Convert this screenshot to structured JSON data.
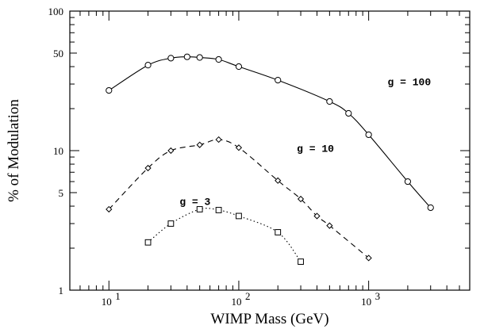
{
  "chart_data": {
    "type": "line",
    "xlabel": "WIMP Mass (GeV)",
    "ylabel": "% of Modulation",
    "x_scale": "log",
    "y_scale": "log",
    "xlim": [
      5,
      6000
    ],
    "ylim": [
      1,
      100
    ],
    "x_ticks": [
      {
        "value": 10,
        "label": "10",
        "exp": "1"
      },
      {
        "value": 100,
        "label": "10",
        "exp": "2"
      },
      {
        "value": 1000,
        "label": "10",
        "exp": "3"
      }
    ],
    "y_ticks": [
      {
        "value": 1,
        "label": "1"
      },
      {
        "value": 5,
        "label": "5"
      },
      {
        "value": 10,
        "label": "10"
      },
      {
        "value": 50,
        "label": "50"
      },
      {
        "value": 100,
        "label": "100"
      }
    ],
    "grid": false,
    "series": [
      {
        "name": "g = 100",
        "line_style": "solid",
        "marker": "circle",
        "x": [
          10,
          20,
          30,
          40,
          50,
          70,
          100,
          200,
          500,
          700,
          1000,
          2000,
          3000
        ],
        "y": [
          27,
          41,
          46,
          47,
          46.5,
          45,
          40,
          32,
          22.5,
          18.5,
          13,
          6,
          3.9
        ]
      },
      {
        "name": "g = 10",
        "line_style": "dashed",
        "marker": "diamond",
        "x": [
          10,
          20,
          30,
          50,
          70,
          100,
          200,
          300,
          400,
          500,
          1000
        ],
        "y": [
          3.8,
          7.5,
          10,
          11,
          12,
          10.5,
          6.1,
          4.5,
          3.4,
          2.9,
          1.7
        ]
      },
      {
        "name": "g = 3",
        "line_style": "dotted",
        "marker": "square",
        "x": [
          20,
          30,
          50,
          70,
          100,
          200,
          300
        ],
        "y": [
          2.2,
          3.0,
          3.8,
          3.75,
          3.4,
          2.6,
          1.6
        ]
      }
    ],
    "annotations": [
      {
        "text": "g = 100",
        "x": 1400,
        "y": 31
      },
      {
        "text": "g = 10",
        "x": 280,
        "y": 10.3
      },
      {
        "text": "g = 3",
        "x": 35,
        "y": 4.3
      }
    ]
  }
}
